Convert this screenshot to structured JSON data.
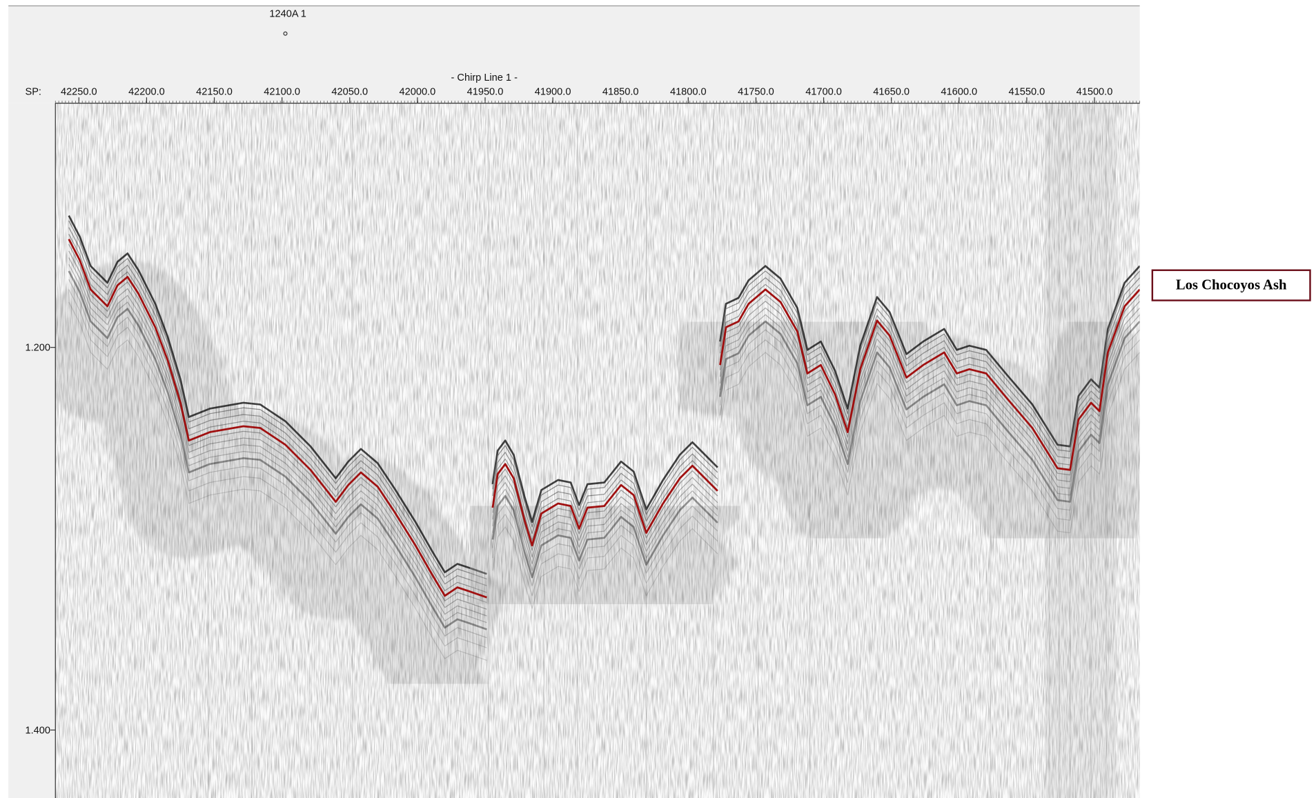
{
  "header": {
    "well_label": "1240A 1",
    "line_title": "- Chirp Line 1 -",
    "sp_label": "SP:"
  },
  "sp_ticks": [
    "42250.0",
    "42200.0",
    "42150.0",
    "42100.0",
    "42050.0",
    "42000.0",
    "41950.0",
    "41900.0",
    "41850.0",
    "41800.0",
    "41750.0",
    "41700.0",
    "41650.0",
    "41600.0",
    "41550.0",
    "41500.0"
  ],
  "time_ticks": [
    "1.200",
    "1.400"
  ],
  "annotation": "Los Chocoyos Ash"
}
